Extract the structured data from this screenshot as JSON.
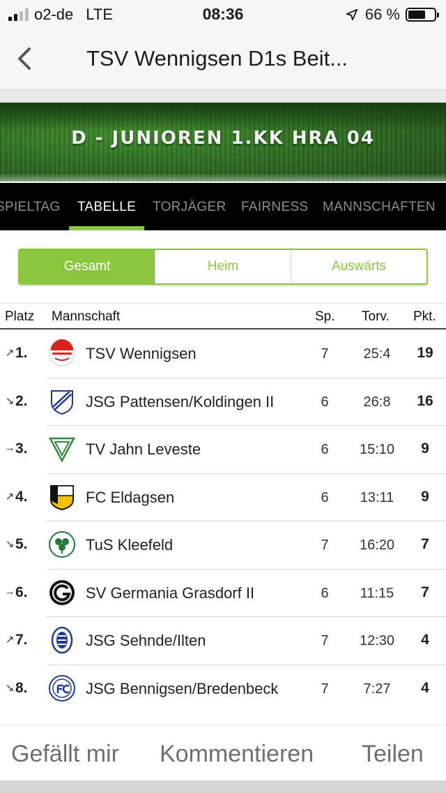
{
  "status_bar": {
    "carrier": "o2-de",
    "network": "LTE",
    "time": "08:36",
    "battery": "66 %",
    "battery_level": 0.66
  },
  "nav": {
    "title": "TSV Wennigsen D1s Beit...",
    "back_icon": "chevron-left-icon"
  },
  "banner": {
    "title": "D - JUNIOREN 1.KK HRA 04"
  },
  "tabs": [
    {
      "label": "SPIELTAG",
      "active": false
    },
    {
      "label": "TABELLE",
      "active": true
    },
    {
      "label": "TORJÄGER",
      "active": false
    },
    {
      "label": "FAIRNESS",
      "active": false
    },
    {
      "label": "MANNSCHAFTEN",
      "active": false
    }
  ],
  "segments": [
    {
      "label": "Gesamt",
      "active": true
    },
    {
      "label": "Heim",
      "active": false
    },
    {
      "label": "Auswärts",
      "active": false
    }
  ],
  "table": {
    "headers": {
      "platz": "Platz",
      "mannschaft": "Mannschaft",
      "sp": "Sp.",
      "torv": "Torv.",
      "pkt": "Pkt."
    },
    "rows": [
      {
        "trend": "↗",
        "trend_icon": "trend-up-icon",
        "rank": "1.",
        "team": "TSV Wennigsen",
        "logo": "tsv-wennigsen-logo",
        "sp": "7",
        "torv": "25:4",
        "pkt": "19"
      },
      {
        "trend": "↘",
        "trend_icon": "trend-down-icon",
        "rank": "2.",
        "team": "JSG Pattensen/Koldingen II",
        "logo": "jsg-pattensen-logo",
        "sp": "6",
        "torv": "26:8",
        "pkt": "16"
      },
      {
        "trend": "→",
        "trend_icon": "trend-same-icon",
        "rank": "3.",
        "team": "TV Jahn Leveste",
        "logo": "tv-jahn-leveste-logo",
        "sp": "6",
        "torv": "15:10",
        "pkt": "9"
      },
      {
        "trend": "↗",
        "trend_icon": "trend-up-icon",
        "rank": "4.",
        "team": "FC Eldagsen",
        "logo": "fc-eldagsen-logo",
        "sp": "6",
        "torv": "13:11",
        "pkt": "9"
      },
      {
        "trend": "↘",
        "trend_icon": "trend-down-icon",
        "rank": "5.",
        "team": "TuS Kleefeld",
        "logo": "tus-kleefeld-logo",
        "sp": "7",
        "torv": "16:20",
        "pkt": "7"
      },
      {
        "trend": "→",
        "trend_icon": "trend-same-icon",
        "rank": "6.",
        "team": "SV Germania Grasdorf II",
        "logo": "sv-germania-grasdorf-logo",
        "sp": "6",
        "torv": "11:15",
        "pkt": "7"
      },
      {
        "trend": "↗",
        "trend_icon": "trend-up-icon",
        "rank": "7.",
        "team": "JSG Sehnde/Ilten",
        "logo": "jsg-sehnde-ilten-logo",
        "sp": "7",
        "torv": "12:30",
        "pkt": "4"
      },
      {
        "trend": "↘",
        "trend_icon": "trend-down-icon",
        "rank": "8.",
        "team": "JSG Bennigsen/Bredenbeck",
        "logo": "jsg-bennigsen-logo",
        "sp": "7",
        "torv": "7:27",
        "pkt": "4"
      }
    ]
  },
  "actions": {
    "like": "Gefällt mir",
    "comment": "Kommentieren",
    "share": "Teilen"
  },
  "colors": {
    "accent": "#8cc63f",
    "tab_bar": "#000000",
    "action_text": "#6d6f73"
  }
}
